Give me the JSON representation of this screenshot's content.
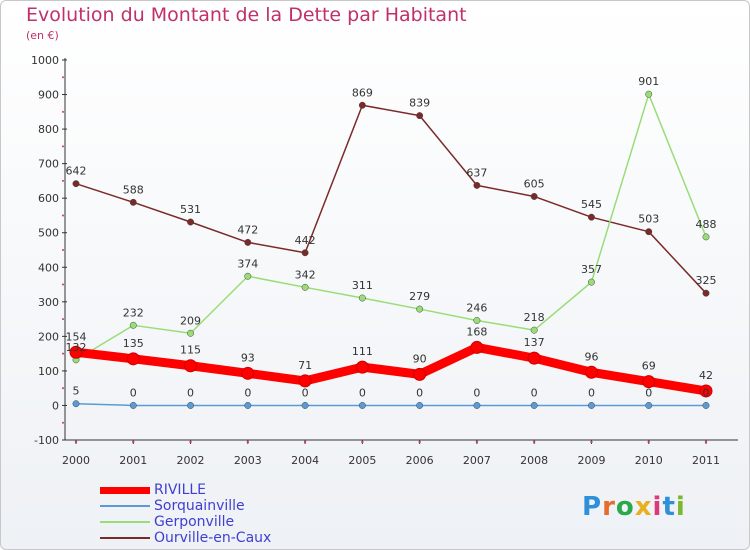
{
  "title": "Evolution du Montant de la Dette par Habitant",
  "subtitle": "(en €)",
  "logo_text": "Proxiti",
  "chart_data": {
    "type": "line",
    "title": "Evolution du Montant de la Dette par Habitant",
    "subtitle": "(en €)",
    "categories": [
      "2000",
      "2001",
      "2002",
      "2003",
      "2004",
      "2005",
      "2006",
      "2007",
      "2008",
      "2009",
      "2010",
      "2011"
    ],
    "ylim": [
      -100,
      1000
    ],
    "yticks": [
      "-100",
      "0",
      "100",
      "200",
      "300",
      "400",
      "500",
      "600",
      "700",
      "800",
      "900",
      "1000"
    ],
    "grid": false,
    "legend_position": "bottom-left",
    "series": [
      {
        "name": "RIVILLE",
        "color": "#ff0000",
        "values": [
          154,
          135,
          115,
          93,
          71,
          111,
          90,
          168,
          137,
          96,
          69,
          42
        ]
      },
      {
        "name": "Sorquainville",
        "color": "#5b9bd5",
        "values": [
          5,
          0,
          0,
          0,
          0,
          0,
          0,
          0,
          0,
          0,
          0,
          0
        ]
      },
      {
        "name": "Gerponville",
        "color": "#99dd77",
        "values": [
          132,
          232,
          209,
          374,
          342,
          311,
          279,
          246,
          218,
          357,
          901,
          488
        ]
      },
      {
        "name": "Ourville-en-Caux",
        "color": "#7b2a2a",
        "values": [
          642,
          588,
          531,
          472,
          442,
          869,
          839,
          637,
          605,
          545,
          503,
          325
        ]
      }
    ]
  }
}
